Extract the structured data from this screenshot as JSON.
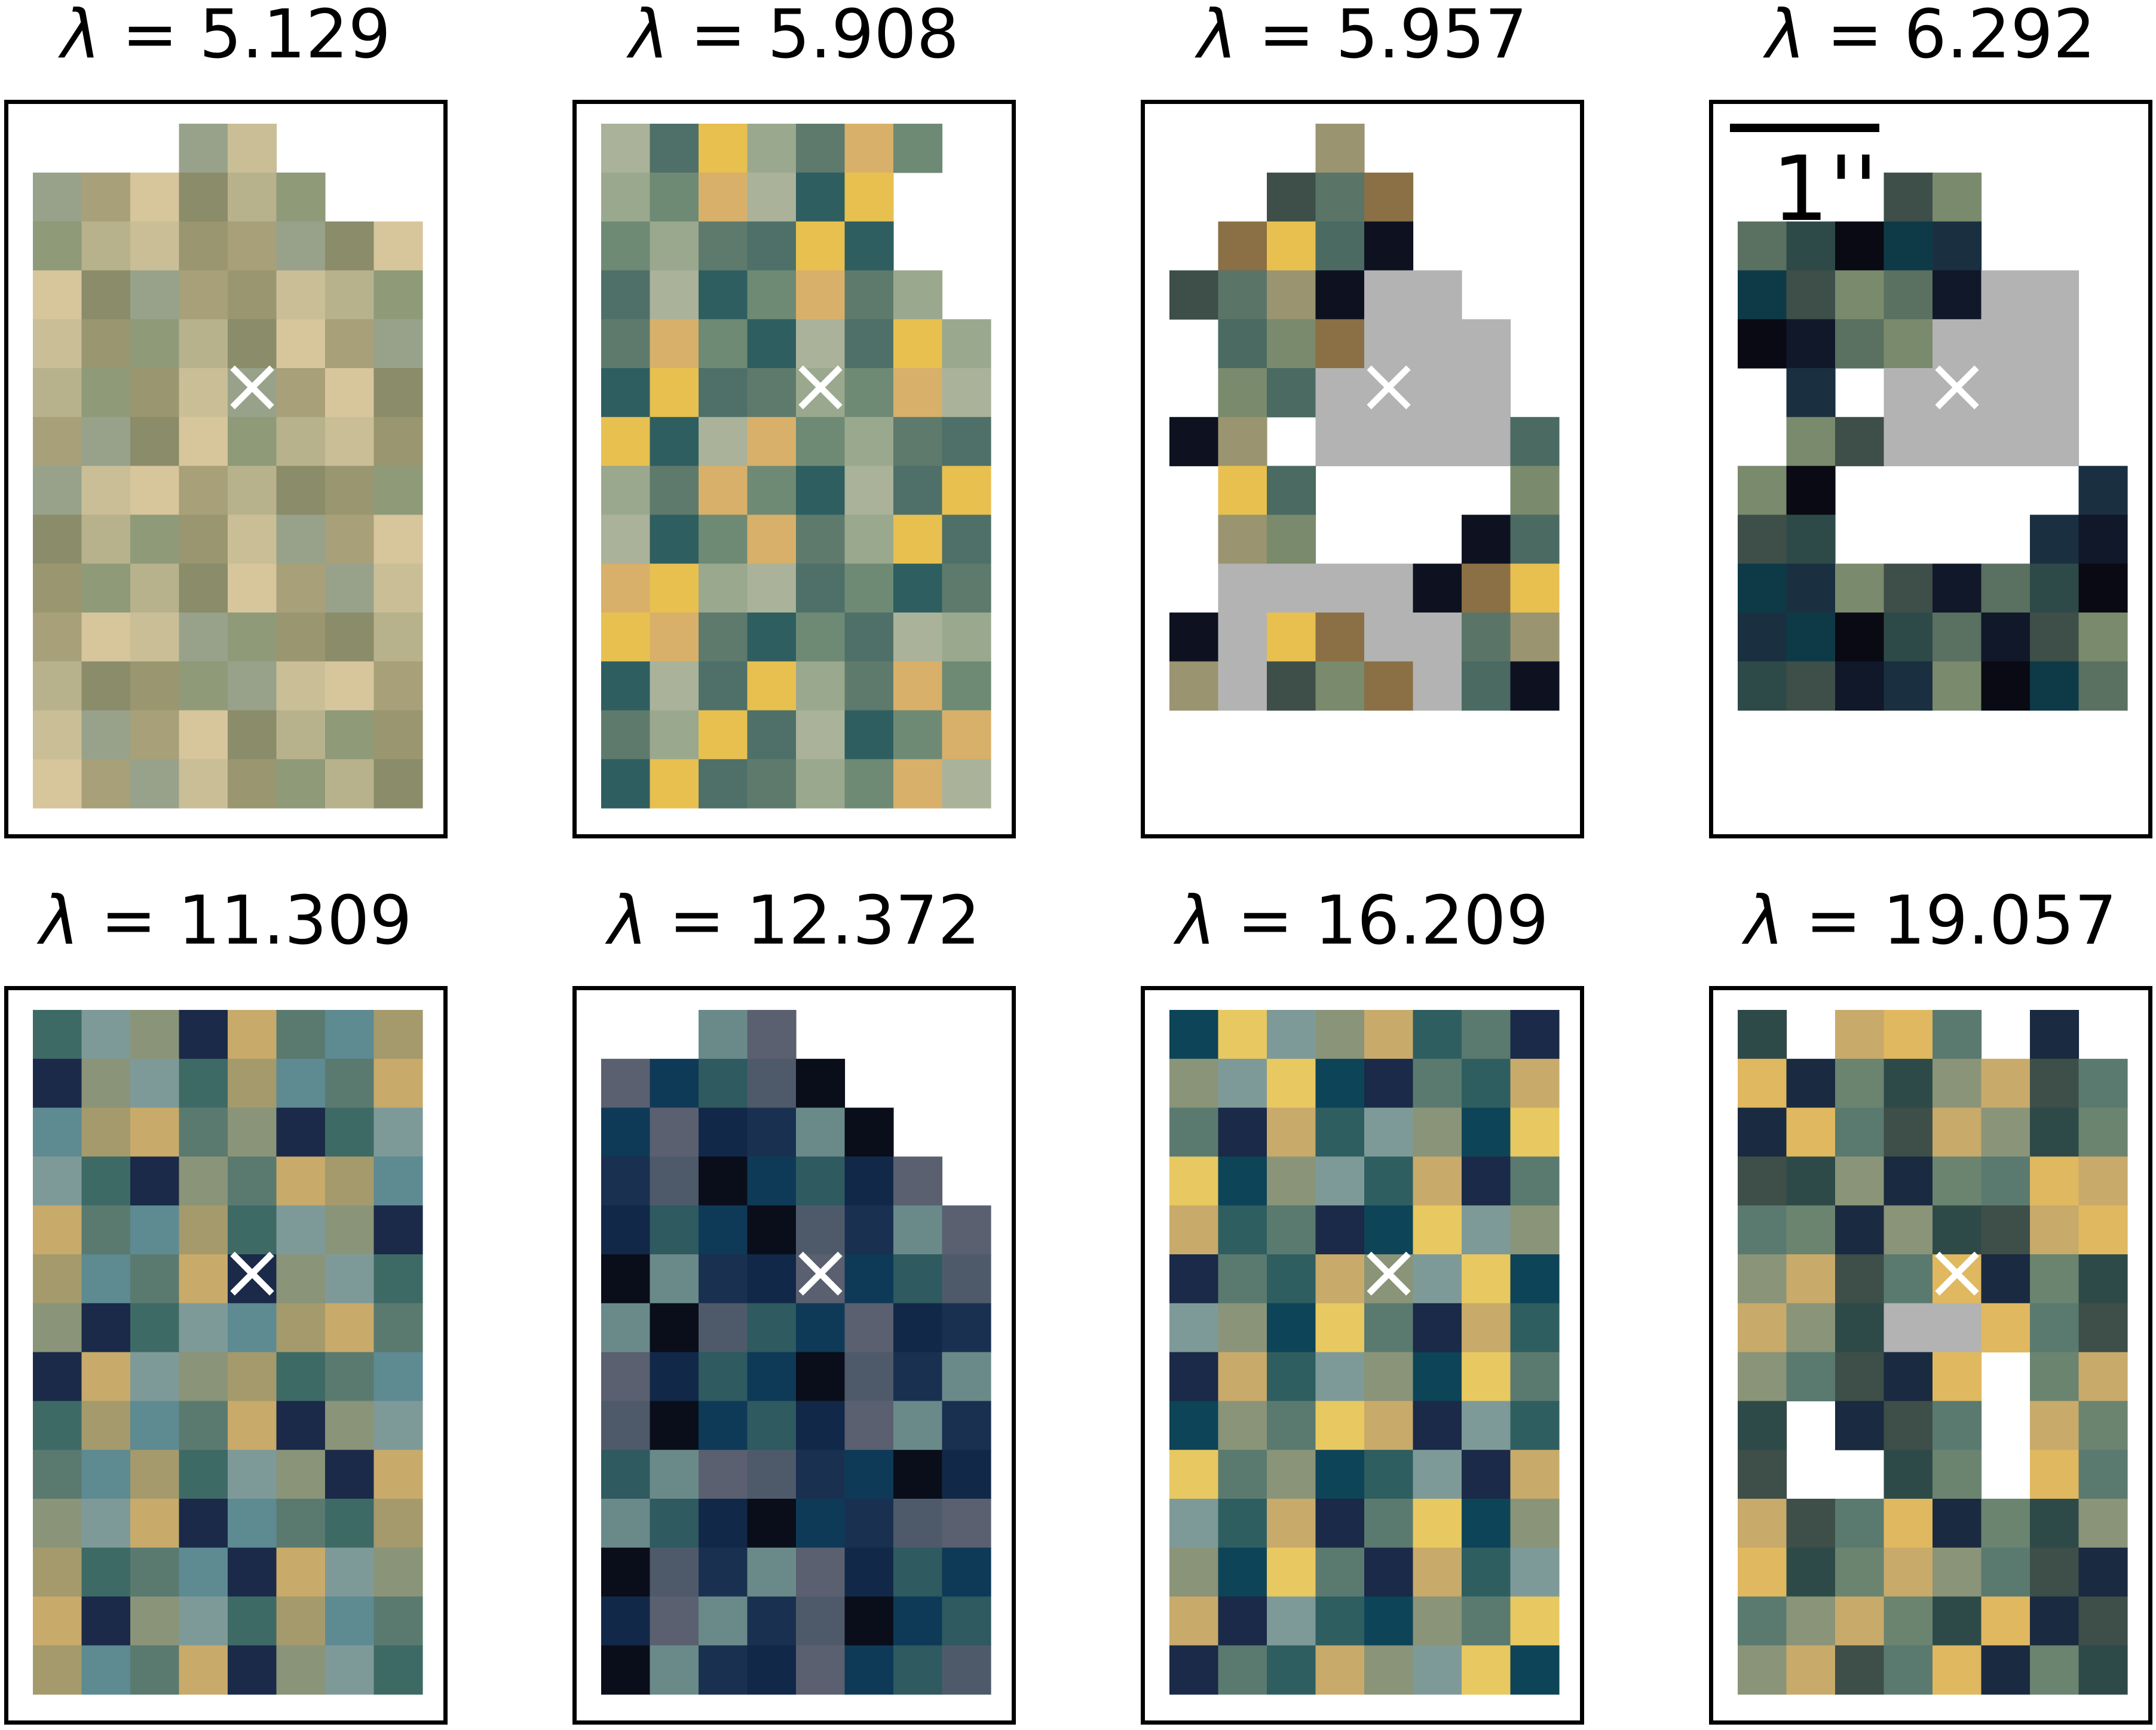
{
  "chart_data": {
    "type": "heatmap",
    "layout": {
      "rows": 2,
      "cols": 4
    },
    "grid_size": [
      8,
      14
    ],
    "symbol": "λ",
    "scale_bar_label": "1''",
    "scale_bar_panel": 3,
    "center_marker": "×",
    "panels": [
      {
        "lambda": "5.129",
        "cells": [
          "___##___",
          "######__",
          "########",
          "########",
          "########",
          "########",
          "########",
          "########",
          "########",
          "########",
          "########",
          "########",
          "########",
          "########"
        ],
        "palette": [
          "#8a8c6a",
          "#9a9670",
          "#a8a078",
          "#b7b28c",
          "#c9be96",
          "#d7c59b",
          "#8e9a78",
          "#98a28a"
        ]
      },
      {
        "lambda": "5.908",
        "cells": [
          "#######_",
          "######__",
          "######__",
          "#######_",
          "########",
          "########",
          "########",
          "########",
          "########",
          "########",
          "########",
          "########",
          "########",
          "########"
        ],
        "palette": [
          "#5e7a6c",
          "#4e7068",
          "#6e8a74",
          "#9aa88e",
          "#aab29a",
          "#d8b06a",
          "#e8c050",
          "#2e5e60"
        ]
      },
      {
        "lambda": "5.957",
        "cells": [
          "___#____",
          "__###___",
          "_####___",
          "####GG__",
          "_###GGG_",
          "_##GGGG_",
          "##_GGGG#",
          "_##____#",
          "_##___##",
          "_GGGG###",
          "#G##GG##",
          "#G###G##",
          "________",
          "________"
        ],
        "palette": [
          "#5a7468",
          "#4a6a62",
          "#7a8a6c",
          "#9a9470",
          "#e8c050",
          "#3e4e48",
          "#0e1220",
          "#8a7044"
        ]
      },
      {
        "lambda": "6.292",
        "cells": [
          "________",
          "___##___",
          "#####___",
          "#####GG_",
          "####GGG_",
          "_#_GGGG_",
          "_##GGGG_",
          "##_____#",
          "##____##",
          "########",
          "########",
          "########",
          "________",
          "________"
        ],
        "palette": [
          "#0a0a14",
          "#10182a",
          "#1a3040",
          "#2e4a48",
          "#3e4e48",
          "#0e3a48",
          "#5a7060",
          "#7a8a6c"
        ]
      },
      {
        "lambda": "11.309",
        "cells": [
          "########",
          "########",
          "########",
          "########",
          "########",
          "########",
          "########",
          "########",
          "########",
          "########",
          "########",
          "########",
          "########",
          "########"
        ],
        "palette": [
          "#3e6a66",
          "#5a7a70",
          "#8a9478",
          "#a49a6c",
          "#c8aa6a",
          "#7e9a98",
          "#5e8a92",
          "#1a2a48"
        ]
      },
      {
        "lambda": "12.372",
        "cells": [
          "__##____",
          "#####___",
          "######__",
          "#######_",
          "########",
          "########",
          "########",
          "########",
          "########",
          "########",
          "########",
          "########",
          "########",
          "########"
        ],
        "palette": [
          "#122848",
          "#1a3050",
          "#0e3a58",
          "#5a6070",
          "#4e5a6a",
          "#2e5a60",
          "#6a8a8a",
          "#0a0e1a"
        ]
      },
      {
        "lambda": "16.209",
        "cells": [
          "########",
          "########",
          "########",
          "########",
          "########",
          "########",
          "########",
          "########",
          "########",
          "########",
          "########",
          "########",
          "########",
          "########"
        ],
        "palette": [
          "#0e4458",
          "#2e5e60",
          "#5a7a70",
          "#8a9478",
          "#c8aa6a",
          "#e8c860",
          "#7e9a98",
          "#1a2a48"
        ]
      },
      {
        "lambda": "19.057",
        "cells": [
          "#_###_#_",
          "########",
          "########",
          "########",
          "########",
          "########",
          "###GG###",
          "#####_##",
          "#_###_##",
          "#__##_##",
          "########",
          "########",
          "########",
          "########"
        ],
        "palette": [
          "#5a7a70",
          "#6a8470",
          "#c8aa6a",
          "#e0b860",
          "#2e4a48",
          "#3e4e48",
          "#1a2a40",
          "#8a9478"
        ]
      }
    ]
  }
}
